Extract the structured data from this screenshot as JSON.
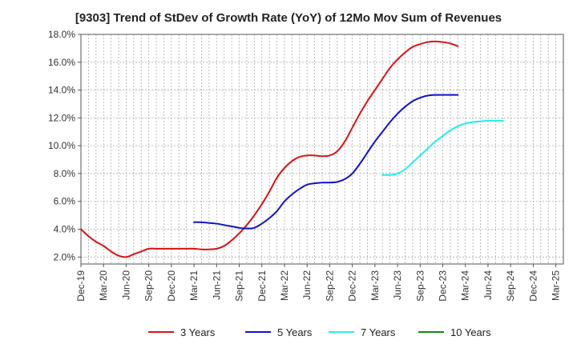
{
  "chart_data": {
    "type": "line",
    "title": "[9303]  Trend of StDev of Growth Rate (YoY) of 12Mo Mov Sum of Revenues",
    "xlabel": "",
    "ylabel": "",
    "ylim": [
      1.5,
      18.0
    ],
    "y_ticks": [
      2.0,
      4.0,
      6.0,
      8.0,
      10.0,
      12.0,
      14.0,
      16.0,
      18.0
    ],
    "y_tick_labels": [
      "2.0%",
      "4.0%",
      "6.0%",
      "8.0%",
      "10.0%",
      "12.0%",
      "14.0%",
      "16.0%",
      "18.0%"
    ],
    "x_tick_labels": [
      "Dec-19",
      "Mar-20",
      "Jun-20",
      "Sep-20",
      "Dec-20",
      "Mar-21",
      "Jun-21",
      "Sep-21",
      "Dec-21",
      "Mar-22",
      "Jun-22",
      "Sep-22",
      "Dec-22",
      "Mar-23",
      "Jun-23",
      "Sep-23",
      "Dec-23",
      "Mar-24",
      "Jun-24",
      "Sep-24",
      "Dec-24",
      "Mar-25"
    ],
    "x_period_count": 64,
    "grid": true,
    "legend_position": "bottom",
    "series": [
      {
        "name": "3 Years",
        "color": "#dd1111",
        "start_index": 0,
        "values": [
          4.0,
          3.5,
          3.1,
          2.8,
          2.4,
          2.1,
          2.0,
          2.2,
          2.4,
          2.6,
          2.6,
          2.6,
          2.6,
          2.6,
          2.6,
          2.6,
          2.55,
          2.55,
          2.6,
          2.8,
          3.2,
          3.7,
          4.3,
          5.0,
          5.8,
          6.7,
          7.7,
          8.4,
          8.9,
          9.2,
          9.3,
          9.3,
          9.25,
          9.3,
          9.6,
          10.3,
          11.3,
          12.3,
          13.2,
          14.0,
          14.8,
          15.6,
          16.2,
          16.7,
          17.1,
          17.3,
          17.45,
          17.5,
          17.45,
          17.35,
          17.15
        ]
      },
      {
        "name": "5 Years",
        "color": "#1111cc",
        "start_index": 15,
        "values": [
          4.5,
          4.5,
          4.45,
          4.4,
          4.3,
          4.2,
          4.1,
          4.05,
          4.1,
          4.4,
          4.8,
          5.3,
          6.0,
          6.5,
          6.9,
          7.2,
          7.3,
          7.35,
          7.35,
          7.4,
          7.6,
          8.0,
          8.7,
          9.5,
          10.3,
          11.0,
          11.7,
          12.3,
          12.8,
          13.2,
          13.45,
          13.6,
          13.65,
          13.65,
          13.65,
          13.65
        ]
      },
      {
        "name": "7 Years",
        "color": "#22eeee",
        "start_index": 40,
        "values": [
          7.9,
          7.9,
          8.0,
          8.3,
          8.8,
          9.3,
          9.8,
          10.3,
          10.7,
          11.1,
          11.4,
          11.6,
          11.7,
          11.75,
          11.8,
          11.8,
          11.8
        ]
      },
      {
        "name": "10 Years",
        "color": "#118811",
        "start_index": 0,
        "values": []
      }
    ]
  }
}
